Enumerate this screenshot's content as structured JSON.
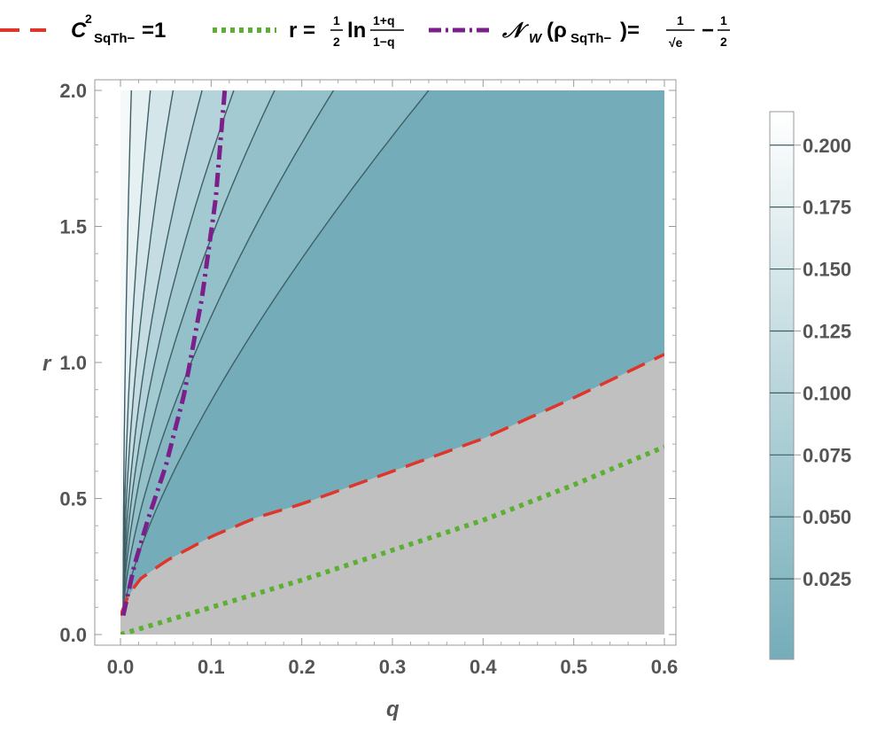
{
  "chart_data": {
    "type": "contour",
    "xlabel": "q",
    "ylabel": "r",
    "xlim": [
      0,
      0.6
    ],
    "ylim": [
      0,
      2.0
    ],
    "x_ticks": [
      "0.0",
      "0.1",
      "0.2",
      "0.3",
      "0.4",
      "0.5",
      "0.6"
    ],
    "y_ticks": [
      "0.0",
      "0.5",
      "1.0",
      "1.5",
      "2.0"
    ],
    "contour_levels": [
      0.025,
      0.05,
      0.075,
      0.1,
      0.125,
      0.15,
      0.175,
      0.2
    ],
    "colorbar": {
      "labels": [
        "0.200",
        "0.175",
        "0.150",
        "0.125",
        "0.100",
        "0.075",
        "0.050",
        "0.025"
      ],
      "color_low": "#74adb9",
      "color_high": "#ffffff"
    },
    "region_color": "#c0c0c0",
    "legend": [
      {
        "name": "C²_SqTh- = 1",
        "style": "dashed",
        "color": "#e0352b",
        "parts": {
          "base": "C",
          "sup": "2",
          "sub": "SqTh−",
          "rest": "=1"
        }
      },
      {
        "name": "r = ½ ln((1+q)/(1−q))",
        "style": "dotted",
        "color": "#5bb033",
        "parts": {
          "lhs": "r = ",
          "half_num": "1",
          "half_den": "2",
          "ln": "ln",
          "frac_num": "1+q",
          "frac_den": "1−q"
        }
      },
      {
        "name": "N_W(ρ_SqTh-) = 1/√e − 1/2",
        "style": "dot-dash",
        "color": "#7b1f8a",
        "parts": {
          "N": "𝒩",
          "W": "W",
          "open": "(ρ",
          "sub": "SqTh−",
          "close": ")=",
          "num1": "1",
          "den1": "√e",
          "minus": "−",
          "num2": "1",
          "den2": "2"
        }
      }
    ],
    "series": [
      {
        "name": "boundary",
        "x": [
          0.0,
          0.005,
          0.02,
          0.05,
          0.1,
          0.15,
          0.2,
          0.3,
          0.4,
          0.5,
          0.6
        ],
        "y": [
          0.07,
          0.12,
          0.2,
          0.27,
          0.36,
          0.43,
          0.48,
          0.6,
          0.72,
          0.87,
          1.03
        ]
      },
      {
        "name": "linear",
        "x": [
          0.0,
          0.1,
          0.2,
          0.3,
          0.4,
          0.5,
          0.6
        ],
        "y": [
          0.0,
          0.1,
          0.2,
          0.31,
          0.42,
          0.55,
          0.69
        ]
      },
      {
        "name": "nw",
        "x": [
          0.003,
          0.015,
          0.03,
          0.05,
          0.07,
          0.09,
          0.105,
          0.115
        ],
        "y": [
          0.07,
          0.25,
          0.42,
          0.62,
          0.88,
          1.24,
          1.6,
          2.0
        ]
      }
    ]
  }
}
